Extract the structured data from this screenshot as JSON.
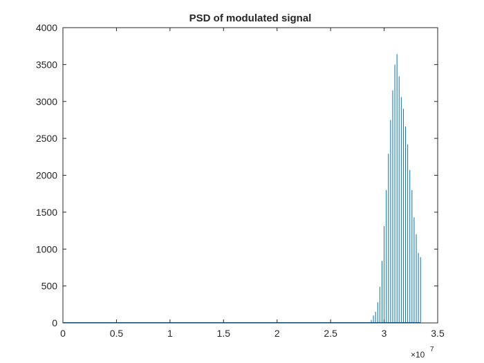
{
  "chart_data": {
    "type": "stem",
    "title": "PSD of modulated signal",
    "xlabel": "",
    "ylabel": "",
    "xlim": [
      0,
      35000000
    ],
    "ylim": [
      0,
      4000
    ],
    "x_exponent_label": "×10",
    "x_exponent_power": "7",
    "x_ticks": [
      0,
      5000000,
      10000000,
      15000000,
      20000000,
      25000000,
      30000000,
      35000000
    ],
    "x_tick_labels": [
      "0",
      "0.5",
      "1",
      "1.5",
      "2",
      "2.5",
      "3",
      "3.5"
    ],
    "y_ticks": [
      0,
      500,
      1000,
      1500,
      2000,
      2500,
      3000,
      3500,
      4000
    ],
    "y_tick_labels": [
      "0",
      "500",
      "1000",
      "1500",
      "2000",
      "2500",
      "3000",
      "3500",
      "4000"
    ],
    "grid": false,
    "box": true,
    "colors": {
      "series": "#0072bd",
      "axes": "#262626"
    },
    "series": [
      {
        "x": [
          28600000,
          28800000,
          29000000,
          29200000,
          29400000,
          29600000,
          29800000,
          30000000,
          30200000,
          30400000,
          30600000,
          30800000,
          31000000,
          31200000,
          31400000,
          31600000,
          31800000,
          32000000,
          32200000,
          32400000,
          32600000,
          32800000,
          33000000,
          33200000,
          33400000
        ],
        "y": [
          10,
          40,
          100,
          150,
          280,
          490,
          840,
          1310,
          1800,
          2290,
          2750,
          3150,
          3500,
          3640,
          3340,
          3060,
          2900,
          2660,
          2420,
          2070,
          1800,
          1430,
          1200,
          950,
          890
        ]
      }
    ]
  }
}
